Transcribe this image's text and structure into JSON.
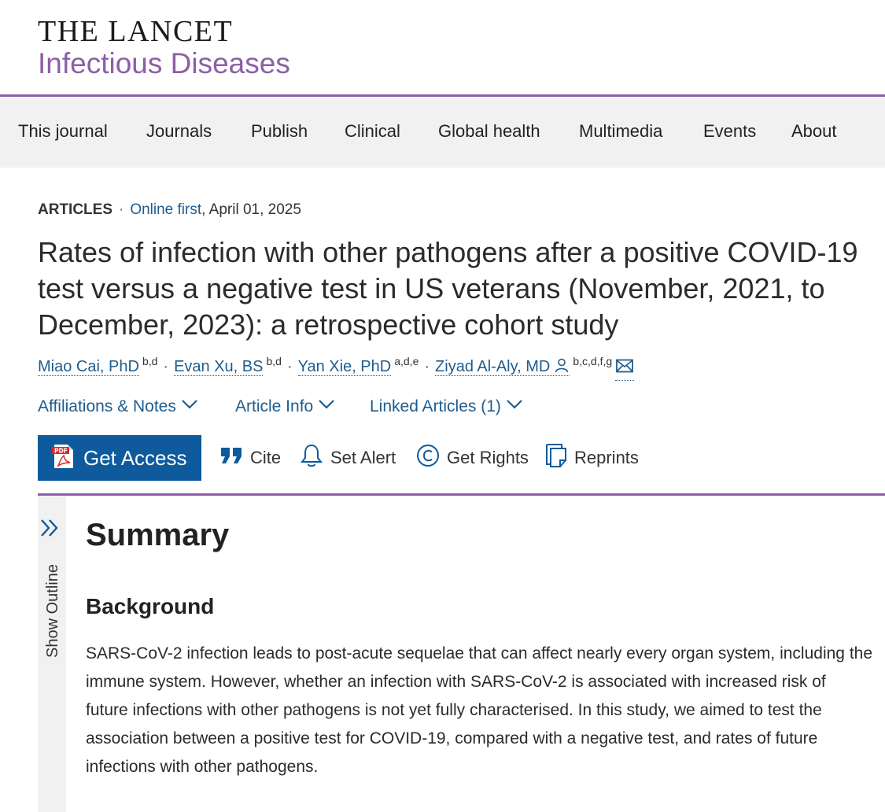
{
  "masthead": {
    "logo_top": "THE LANCET",
    "logo_sub": "Infectious Diseases"
  },
  "nav": {
    "items": [
      "This journal",
      "Journals",
      "Publish",
      "Clinical",
      "Global health",
      "Multimedia",
      "Events",
      "About"
    ]
  },
  "article": {
    "type": "ARTICLES",
    "separator": "·",
    "status": "Online first",
    "date": ", April 01, 2025",
    "title": "Rates of infection with other pathogens after a positive COVID-19 test versus a negative test in US veterans (November, 2021, to December, 2023): a retrospective cohort study",
    "authors": [
      {
        "name": "Miao Cai, PhD",
        "affil": "b,d"
      },
      {
        "name": "Evan Xu, BS",
        "affil": "b,d"
      },
      {
        "name": "Yan Xie, PhD",
        "affil": "a,d,e"
      },
      {
        "name": "Ziyad Al-Aly, MD",
        "affil": "b,c,d,f,g"
      }
    ],
    "author_separator": "·"
  },
  "expanders": {
    "affiliations": "Affiliations & Notes",
    "article_info": "Article Info",
    "linked_articles": "Linked Articles (1)"
  },
  "toolbar": {
    "get_access": "Get Access",
    "cite": "Cite",
    "set_alert": "Set Alert",
    "get_rights": "Get Rights",
    "reprints": "Reprints"
  },
  "outline": {
    "label": "Show Outline"
  },
  "content": {
    "summary_heading": "Summary",
    "background_heading": "Background",
    "background_text": "SARS-CoV-2 infection leads to post-acute sequelae that can affect nearly every organ system, including the immune system. However, whether an infection with SARS-CoV-2 is associated with increased risk of future infections with other pathogens is not yet fully characterised. In this study, we aimed to test the association between a positive test for COVID-19, compared with a negative test, and rates of future infections with other pathogens."
  },
  "colors": {
    "brand_purple": "#8c5fa8",
    "link_blue": "#1e5c8e",
    "access_blue": "#0e5a9c",
    "nav_bg": "#f1f1f1"
  },
  "icons": {
    "get_access": "pdf-icon",
    "cite": "quote-icon",
    "set_alert": "bell-icon",
    "get_rights": "copyright-icon",
    "reprints": "reprints-icon",
    "author_contact": "person-icon",
    "email": "mail-icon",
    "outline": "double-chevron-right-icon",
    "expander": "chevron-down-icon"
  }
}
